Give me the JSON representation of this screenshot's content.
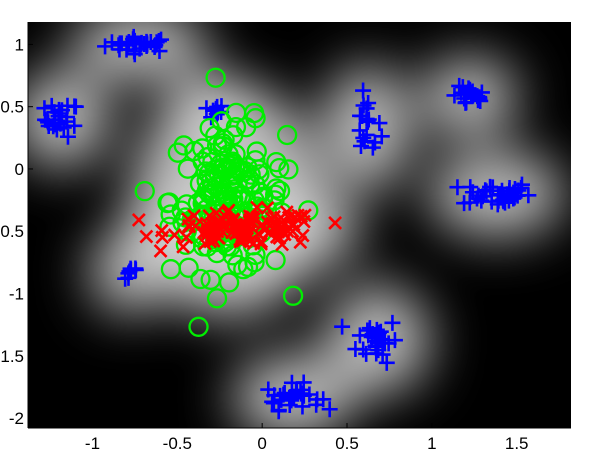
{
  "chart_data": {
    "type": "scatter",
    "title": "",
    "xlabel": "",
    "ylabel": "",
    "xlim": [
      -1.38,
      1.82
    ],
    "ylim": [
      -2.08,
      1.18
    ],
    "xticks": [
      -1,
      -0.5,
      0,
      0.5,
      1,
      1.5
    ],
    "xtick_labels": [
      "-1",
      "-0.5",
      "0",
      "0.5",
      "1",
      "1.5"
    ],
    "yticks": [
      -2,
      -1.5,
      -1,
      -0.5,
      0,
      0.5,
      1
    ],
    "ytick_labels": [
      "-2",
      "-1.5",
      "-1",
      "-0.5",
      "0",
      "0.5",
      "1"
    ],
    "grid": false,
    "legend": "none",
    "background": "grayscale density map (white = high density, black = low)",
    "series": [
      {
        "marker": "+",
        "color": "#0000ff",
        "clusters": [
          {
            "center": [
              -0.72,
              1.0
            ],
            "spread": [
              0.1,
              0.03
            ],
            "n": 30
          },
          {
            "center": [
              -1.18,
              0.4
            ],
            "spread": [
              0.05,
              0.07
            ],
            "n": 25
          },
          {
            "center": [
              -0.3,
              0.46
            ],
            "spread": [
              0.04,
              0.03
            ],
            "n": 10
          },
          {
            "center": [
              0.62,
              0.33
            ],
            "spread": [
              0.04,
              0.12
            ],
            "n": 18
          },
          {
            "center": [
              1.22,
              0.58
            ],
            "spread": [
              0.05,
              0.04
            ],
            "n": 20
          },
          {
            "center": [
              1.38,
              -0.2
            ],
            "spread": [
              0.1,
              0.05
            ],
            "n": 40
          },
          {
            "center": [
              -0.78,
              -0.82
            ],
            "spread": [
              0.03,
              0.05
            ],
            "n": 8
          },
          {
            "center": [
              0.68,
              -1.37
            ],
            "spread": [
              0.06,
              0.09
            ],
            "n": 30
          },
          {
            "center": [
              0.18,
              -1.83
            ],
            "spread": [
              0.08,
              0.05
            ],
            "n": 30
          }
        ]
      },
      {
        "marker": "x",
        "color": "#ff0000",
        "clusters": [
          {
            "center": [
              -0.1,
              -0.48
            ],
            "spread": [
              0.22,
              0.07
            ],
            "n": 120
          }
        ]
      },
      {
        "marker": "o",
        "color": "#00ee00",
        "clusters": [
          {
            "center": [
              -0.2,
              -0.25
            ],
            "spread": [
              0.17,
              0.3
            ],
            "n": 170
          }
        ]
      }
    ]
  }
}
